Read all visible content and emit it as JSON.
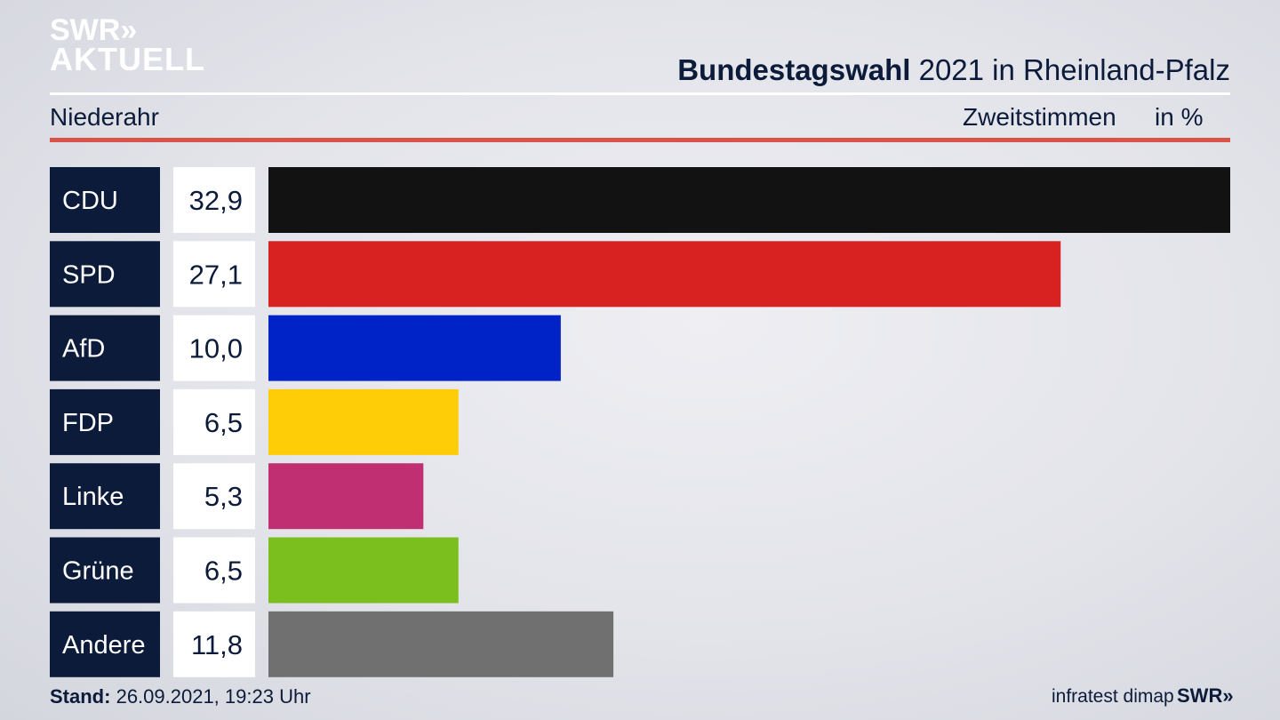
{
  "logo": {
    "line1": "SWR»",
    "line2": "AKTUELL"
  },
  "header": {
    "title_bold": "Bundestagswahl",
    "title_rest": "2021 in Rheinland-Pfalz",
    "region": "Niederahr",
    "measure": "Zweitstimmen",
    "unit": "in %"
  },
  "footer": {
    "stand_label": "Stand:",
    "stand_value": "26.09.2021, 19:23 Uhr",
    "source": "infratest dimap",
    "brand": "SWR»"
  },
  "colors": {
    "label_bg": "#0c1b3a",
    "value_bg": "#ffffff",
    "accent_red_rule": "#d9534a"
  },
  "chart_data": {
    "type": "bar",
    "orientation": "horizontal",
    "categories": [
      "CDU",
      "SPD",
      "AfD",
      "FDP",
      "Linke",
      "Grüne",
      "Andere"
    ],
    "values": [
      32.9,
      27.1,
      10.0,
      6.5,
      5.3,
      6.5,
      11.8
    ],
    "value_labels": [
      "32,9",
      "27,1",
      "10,0",
      "6,5",
      "5,3",
      "6,5",
      "11,8"
    ],
    "bar_colors": [
      "#121212",
      "#d82121",
      "#0023c8",
      "#ffcc08",
      "#bf2f72",
      "#7abf1e",
      "#707070"
    ],
    "title": "Bundestagswahl 2021 in Rheinland-Pfalz",
    "xlabel": "",
    "ylabel": "",
    "xlim": [
      0,
      32.9
    ]
  }
}
